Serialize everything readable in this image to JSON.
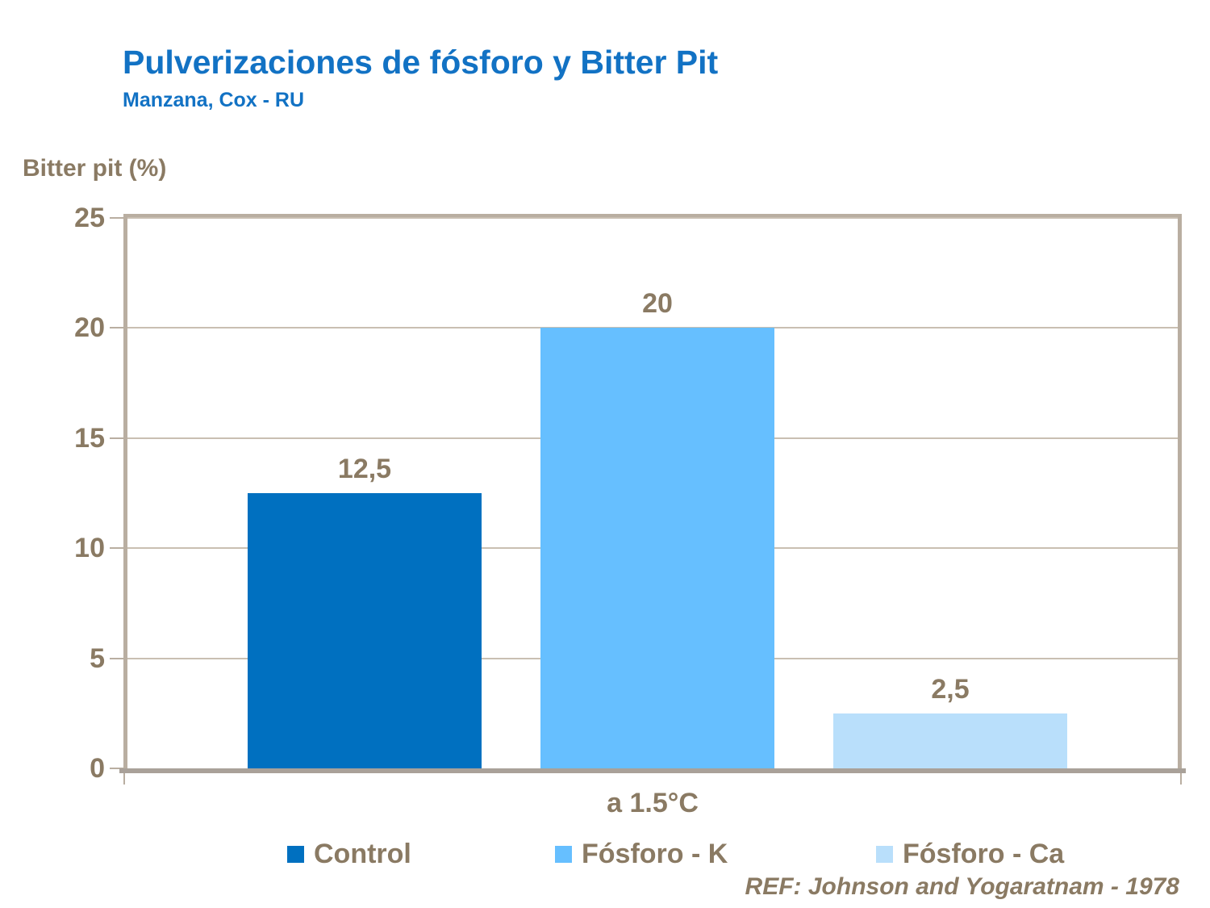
{
  "header": {
    "title": "Pulverizaciones de fósforo y Bitter Pit",
    "subtitle": "Manzana, Cox - RU"
  },
  "chart_data": {
    "type": "bar",
    "title": "Pulverizaciones de fósforo y Bitter Pit",
    "subtitle": "Manzana, Cox - RU",
    "ylabel": "Bitter pit (%)",
    "xlabel": "a 1.5°C",
    "categories": [
      "a 1.5°C"
    ],
    "series": [
      {
        "name": "Control",
        "value": 12.5,
        "label": "12,5",
        "color": "#0070C0"
      },
      {
        "name": "Fósforo - K",
        "value": 20,
        "label": "20",
        "color": "#66BFFF"
      },
      {
        "name": "Fósforo - Ca",
        "value": 2.5,
        "label": "2,5",
        "color": "#B9DFFB"
      }
    ],
    "ylim": [
      0,
      25
    ],
    "yticks": [
      0,
      5,
      10,
      15,
      20,
      25
    ],
    "grid": true,
    "legend_position": "bottom"
  },
  "footer": {
    "ref": "REF: Johnson and Yogaratnam - 1978"
  },
  "colors": {
    "title": "#1272C4",
    "text": "#8A7A63",
    "frame": "#B9AEA1",
    "grid": "#C9BFB2",
    "baseline": "#A9A199"
  }
}
